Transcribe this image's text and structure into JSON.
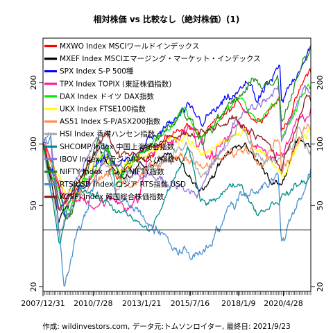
{
  "chart_data": {
    "type": "line",
    "title": "相対株価 vs 比較なし（絶対株価）(1)",
    "footer": "作成: wildinvestors.com, データ元:トムソンロイター, 最終日: 2021/9/23",
    "yscale": "log",
    "ylim": [
      19,
      330
    ],
    "yticks": [
      20,
      50,
      100,
      200
    ],
    "xlim": [
      "2007-12-31",
      "2021-09-23"
    ],
    "xticks": [
      "2007/12/31",
      "2010/7/28",
      "2013/1/21",
      "2015/7/16",
      "2018/1/9",
      "2020/4/28"
    ],
    "baseline": 38,
    "legend_position": "top-left",
    "series": [
      {
        "name": "MXWO Index MSCIワールドインデックス",
        "color": "#ff0000",
        "anchors": [
          [
            "2007-12-31",
            100
          ],
          [
            "2009-03-09",
            52
          ],
          [
            "2011-04-29",
            84
          ],
          [
            "2011-10-03",
            68
          ],
          [
            "2015-05-20",
            126
          ],
          [
            "2016-02-11",
            108
          ],
          [
            "2018-01-26",
            160
          ],
          [
            "2018-12-24",
            130
          ],
          [
            "2020-02-19",
            170
          ],
          [
            "2020-03-23",
            114
          ],
          [
            "2021-09-03",
            232
          ],
          [
            "2021-09-23",
            224
          ]
        ]
      },
      {
        "name": "MXEF Index MSCIエマージング・マーケット・インデックス",
        "color": "#000000",
        "anchors": [
          [
            "2007-12-31",
            100
          ],
          [
            "2008-10-27",
            42
          ],
          [
            "2009-03-09",
            50
          ],
          [
            "2010-11-05",
            98
          ],
          [
            "2011-10-03",
            70
          ],
          [
            "2014-09-04",
            87
          ],
          [
            "2016-01-21",
            60
          ],
          [
            "2018-01-26",
            104
          ],
          [
            "2020-03-23",
            60
          ],
          [
            "2021-02-17",
            109
          ],
          [
            "2021-09-23",
            97
          ]
        ]
      },
      {
        "name": "SPX Index S-P 500種",
        "color": "#0000ff",
        "anchors": [
          [
            "2007-12-31",
            100
          ],
          [
            "2009-03-09",
            46
          ],
          [
            "2011-04-29",
            92
          ],
          [
            "2011-10-03",
            75
          ],
          [
            "2015-05-20",
            145
          ],
          [
            "2016-02-11",
            128
          ],
          [
            "2018-09-20",
            199
          ],
          [
            "2018-12-24",
            160
          ],
          [
            "2020-02-19",
            230
          ],
          [
            "2020-03-23",
            152
          ],
          [
            "2021-09-02",
            310
          ],
          [
            "2021-09-23",
            300
          ]
        ]
      },
      {
        "name": "TPX Index TOPIX (東証株価指数)",
        "color": "#ff1493",
        "anchors": [
          [
            "2007-12-31",
            100
          ],
          [
            "2009-03-09",
            53
          ],
          [
            "2012-11-14",
            52
          ],
          [
            "2013-05-22",
            88
          ],
          [
            "2015-08-10",
            118
          ],
          [
            "2016-06-24",
            83
          ],
          [
            "2018-01-23",
            127
          ],
          [
            "2018-12-25",
            92
          ],
          [
            "2020-03-16",
            88
          ],
          [
            "2021-02-16",
            138
          ],
          [
            "2021-09-23",
            150
          ]
        ]
      },
      {
        "name": "DAX Index ドイツ DAX指数",
        "color": "#00ee00",
        "anchors": [
          [
            "2007-12-31",
            100
          ],
          [
            "2009-03-09",
            46
          ],
          [
            "2011-05-02",
            96
          ],
          [
            "2011-09-12",
            65
          ],
          [
            "2015-04-10",
            150
          ],
          [
            "2016-02-11",
            108
          ],
          [
            "2018-01-23",
            168
          ],
          [
            "2018-12-27",
            127
          ],
          [
            "2020-02-19",
            172
          ],
          [
            "2020-03-16",
            103
          ],
          [
            "2021-08-13",
            200
          ],
          [
            "2021-09-23",
            193
          ]
        ]
      },
      {
        "name": "UKX Index FTSE100指数",
        "color": "#ffff00",
        "anchors": [
          [
            "2007-12-31",
            100
          ],
          [
            "2009-03-03",
            55
          ],
          [
            "2011-02-08",
            92
          ],
          [
            "2011-08-09",
            74
          ],
          [
            "2015-04-27",
            112
          ],
          [
            "2016-02-11",
            87
          ],
          [
            "2018-05-22",
            123
          ],
          [
            "2018-12-24",
            95
          ],
          [
            "2020-03-23",
            72
          ],
          [
            "2021-08-13",
            113
          ],
          [
            "2021-09-23",
            110
          ]
        ]
      },
      {
        "name": "AS51 Index S-P/ASX200指数",
        "color": "#ff8c50",
        "anchors": [
          [
            "2007-12-31",
            100
          ],
          [
            "2009-03-06",
            50
          ],
          [
            "2011-04-11",
            76
          ],
          [
            "2012-06-04",
            64
          ],
          [
            "2015-04-28",
            92
          ],
          [
            "2016-02-08",
            75
          ],
          [
            "2018-08-30",
            98
          ],
          [
            "2018-12-20",
            84
          ],
          [
            "2020-02-20",
            112
          ],
          [
            "2020-03-23",
            75
          ],
          [
            "2021-08-13",
            123
          ],
          [
            "2021-09-23",
            117
          ]
        ]
      },
      {
        "name": "HSI Index 香港ハンセン指数",
        "color": "#aaaaaa",
        "anchors": [
          [
            "2007-12-31",
            100
          ],
          [
            "2008-10-27",
            40
          ],
          [
            "2010-11-08",
            89
          ],
          [
            "2011-10-04",
            62
          ],
          [
            "2015-04-28",
            99
          ],
          [
            "2016-02-12",
            67
          ],
          [
            "2018-01-26",
            120
          ],
          [
            "2018-10-30",
            87
          ],
          [
            "2020-03-23",
            80
          ],
          [
            "2021-02-17",
            113
          ],
          [
            "2021-09-23",
            88
          ]
        ]
      },
      {
        "name": "SHCOMP Index 中国上海総合指数",
        "color": "#008b8b",
        "anchors": [
          [
            "2007-12-31",
            100
          ],
          [
            "2008-10-28",
            32
          ],
          [
            "2009-08-04",
            66
          ],
          [
            "2013-06-27",
            37
          ],
          [
            "2015-06-12",
            96
          ],
          [
            "2016-01-28",
            51
          ],
          [
            "2018-01-29",
            65
          ],
          [
            "2019-01-03",
            46
          ],
          [
            "2021-09-23",
            69
          ]
        ]
      },
      {
        "name": "IBOV Index ブラジルボベスパ指数",
        "color": "#9370db",
        "anchors": [
          [
            "2007-12-31",
            100
          ],
          [
            "2008-05-20",
            115
          ],
          [
            "2008-10-27",
            46
          ],
          [
            "2010-11-04",
            110
          ],
          [
            "2011-08-08",
            77
          ],
          [
            "2016-01-26",
            59
          ],
          [
            "2018-01-26",
            136
          ],
          [
            "2020-01-23",
            186
          ],
          [
            "2020-03-23",
            100
          ],
          [
            "2021-06-07",
            203
          ],
          [
            "2021-09-23",
            178
          ]
        ]
      },
      {
        "name": "NIFTY Index インド NIFTY指数",
        "color": "#228b22",
        "anchors": [
          [
            "2007-12-31",
            100
          ],
          [
            "2009-03-09",
            41
          ],
          [
            "2010-11-05",
            102
          ],
          [
            "2011-12-20",
            75
          ],
          [
            "2015-03-03",
            144
          ],
          [
            "2016-02-29",
            109
          ],
          [
            "2018-08-28",
            195
          ],
          [
            "2020-01-14",
            206
          ],
          [
            "2020-03-23",
            124
          ],
          [
            "2021-09-23",
            305
          ]
        ]
      },
      {
        "name": "RTSIUSD Index ロシア RTS指数 USD",
        "color": "#4a90d0",
        "anchors": [
          [
            "2007-12-31",
            100
          ],
          [
            "2008-05-19",
            113
          ],
          [
            "2009-01-23",
            22
          ],
          [
            "2011-04-08",
            98
          ],
          [
            "2011-10-04",
            57
          ],
          [
            "2014-12-16",
            30
          ],
          [
            "2016-01-20",
            29
          ],
          [
            "2018-01-26",
            56
          ],
          [
            "2020-01-20",
            69
          ],
          [
            "2020-03-18",
            33
          ],
          [
            "2021-09-23",
            76
          ]
        ]
      },
      {
        "name": "KOSPI Index 韓国総合株価指数",
        "color": "#8b1a1a",
        "anchors": [
          [
            "2007-12-31",
            100
          ],
          [
            "2008-10-27",
            47
          ],
          [
            "2011-04-29",
            114
          ],
          [
            "2011-09-26",
            87
          ],
          [
            "2017-11-03",
            131
          ],
          [
            "2019-08-06",
            99
          ],
          [
            "2020-03-19",
            75
          ],
          [
            "2021-06-25",
            172
          ],
          [
            "2021-09-23",
            162
          ]
        ]
      }
    ]
  }
}
